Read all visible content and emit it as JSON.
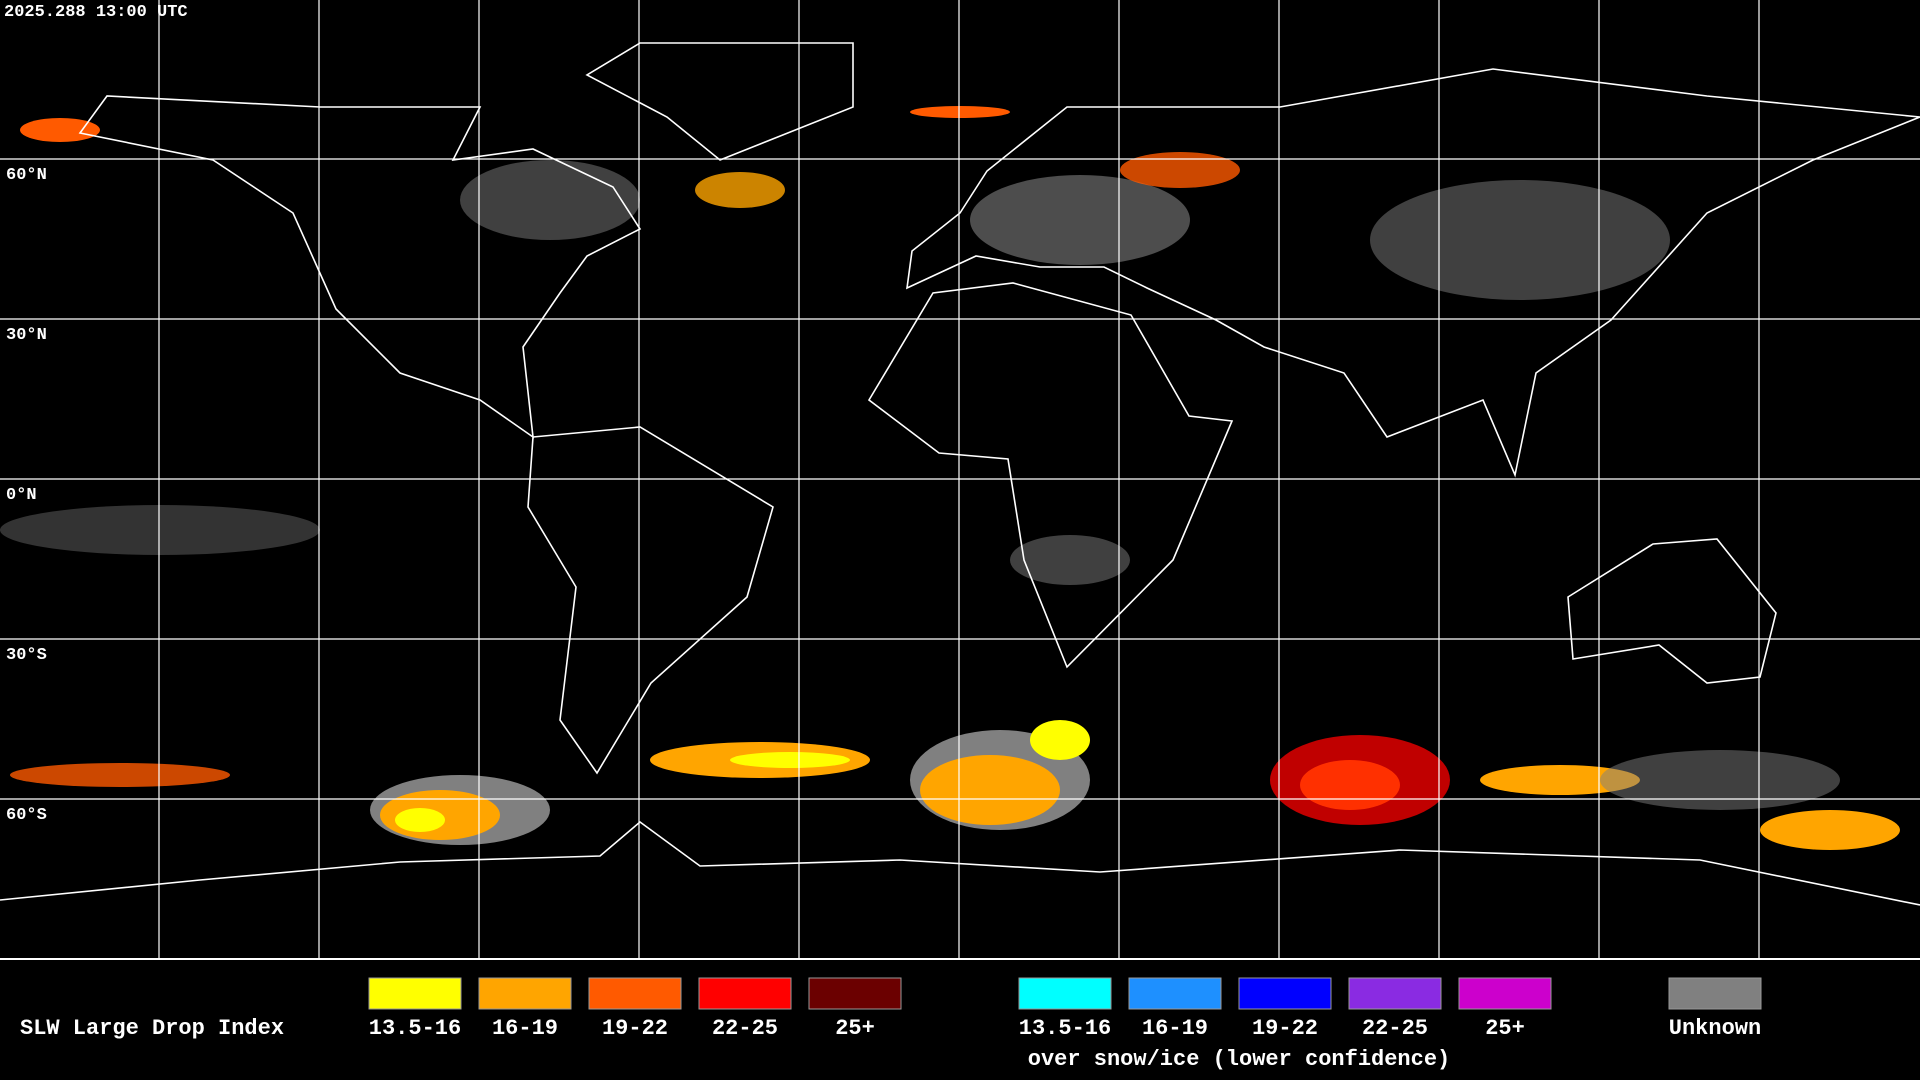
{
  "timestamp": "2025.288 13:00 UTC",
  "latitude_labels": [
    "60°N",
    "30°N",
    "0°N",
    "30°S",
    "60°S"
  ],
  "legend": {
    "title": "SLW Large Drop Index",
    "items": [
      {
        "label": "13.5-16",
        "color": "#ffff00"
      },
      {
        "label": "16-19",
        "color": "#ffa500"
      },
      {
        "label": "19-22",
        "color": "#ff5a00"
      },
      {
        "label": "22-25",
        "color": "#ff0000"
      },
      {
        "label": "25+",
        "color": "#6b0000"
      }
    ],
    "snow_items": [
      {
        "label": "13.5-16",
        "color": "#00ffff"
      },
      {
        "label": "16-19",
        "color": "#1e90ff"
      },
      {
        "label": "19-22",
        "color": "#0000ff"
      },
      {
        "label": "22-25",
        "color": "#8a2be2"
      },
      {
        "label": "25+",
        "color": "#cc00cc"
      }
    ],
    "snow_note": "over snow/ice (lower confidence)",
    "unknown": {
      "label": "Unknown",
      "color": "#808080"
    }
  }
}
